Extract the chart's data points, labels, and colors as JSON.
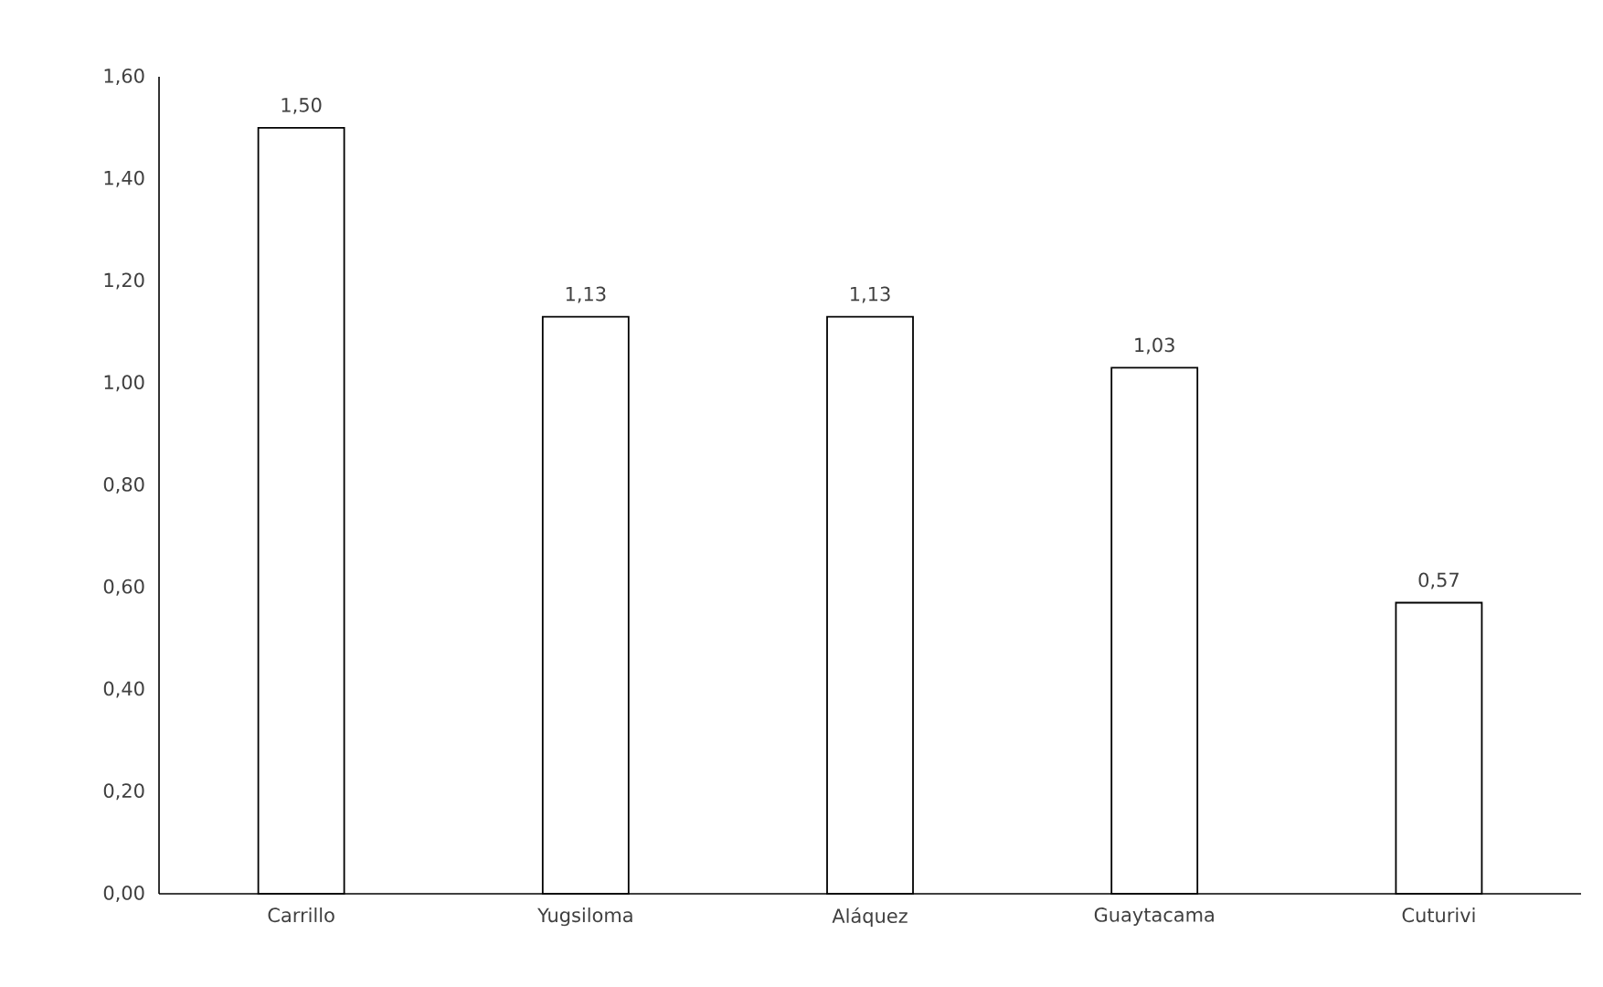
{
  "chart_data": {
    "type": "bar",
    "categories": [
      "Carrillo",
      "Yugsiloma",
      "Aláquez",
      "Guaytacama",
      "Cuturivi"
    ],
    "values": [
      1.5,
      1.13,
      1.13,
      1.03,
      0.57
    ],
    "value_labels": [
      "1,50",
      "1,13",
      "1,13",
      "1,03",
      "0,57"
    ],
    "color": "#ffffff",
    "ylim": [
      0,
      1.6
    ],
    "yticks": [
      {
        "value": 0,
        "label": "0,00"
      },
      {
        "value": 0.2,
        "label": "0,20"
      },
      {
        "value": 0.4,
        "label": "0,40"
      },
      {
        "value": 0.6,
        "label": "0,60"
      },
      {
        "value": 0.8,
        "label": "0,80"
      },
      {
        "value": 1.0,
        "label": "1,00"
      },
      {
        "value": 1.2,
        "label": "1,20"
      },
      {
        "value": 1.4,
        "label": "1,40"
      },
      {
        "value": 1.6,
        "label": "1,60"
      }
    ]
  }
}
